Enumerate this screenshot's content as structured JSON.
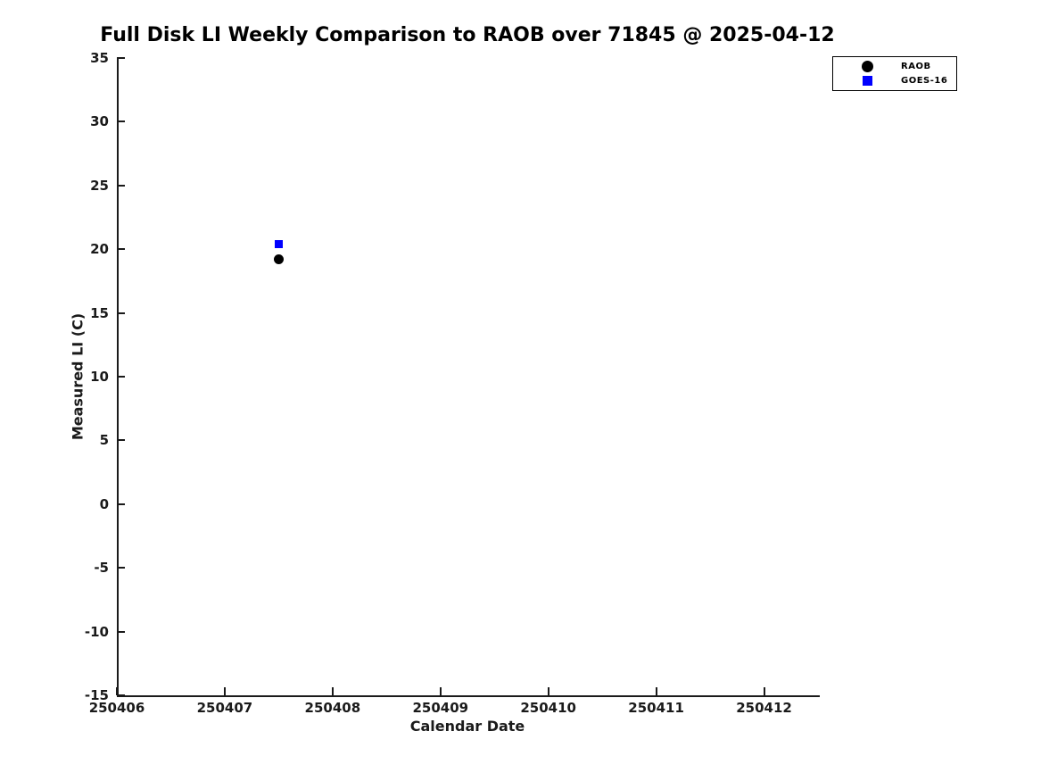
{
  "page": {
    "background_color": "#ffffff",
    "axis_color": "#1a1a1a",
    "text_color": "#1a1a1a"
  },
  "chart_data": {
    "type": "scatter",
    "title": "Full Disk LI Weekly Comparison to RAOB over 71845 @ 2025-04-12",
    "xlabel": "Calendar Date",
    "ylabel": "Measured LI (C)",
    "xlim": [
      250406,
      250412.5
    ],
    "ylim": [
      -15,
      35
    ],
    "xticks": [
      250406,
      250407,
      250408,
      250409,
      250410,
      250411,
      250412
    ],
    "yticks": [
      35,
      30,
      25,
      20,
      15,
      10,
      5,
      0,
      -5,
      -10,
      -15
    ],
    "grid": false,
    "legend": {
      "position": "top-right-outside",
      "entries": [
        "RAOB",
        "GOES-16"
      ]
    },
    "series": [
      {
        "name": "RAOB",
        "marker": "circle",
        "color": "#000000",
        "points": [
          {
            "x": 250407.5,
            "y": 19.2
          }
        ]
      },
      {
        "name": "GOES-16",
        "marker": "square",
        "color": "#0000ff",
        "points": [
          {
            "x": 250407.5,
            "y": 20.4
          }
        ]
      }
    ]
  }
}
